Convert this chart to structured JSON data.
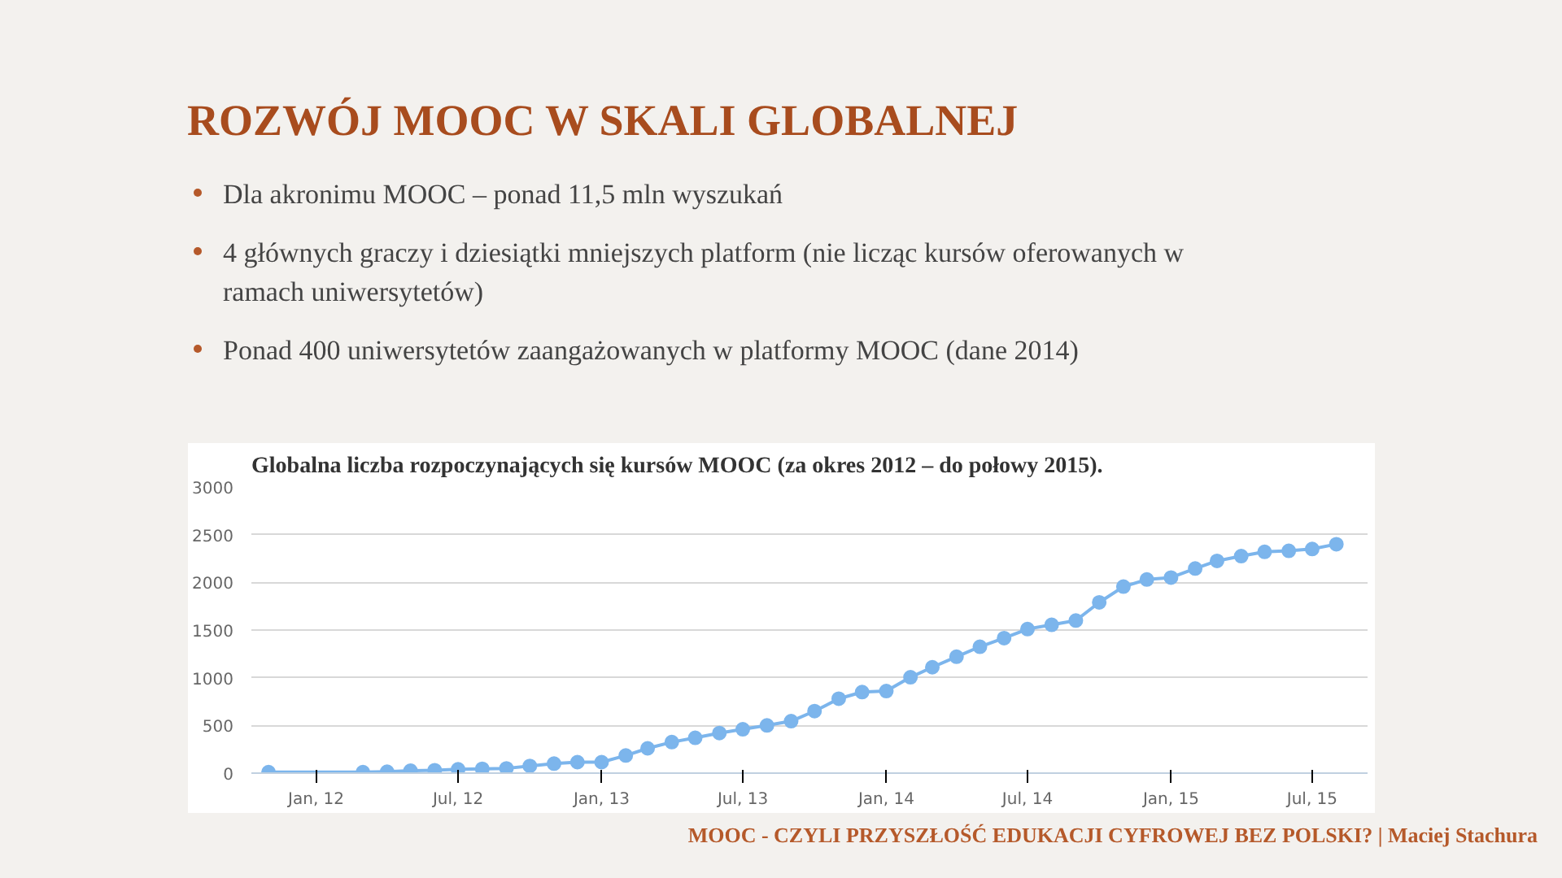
{
  "chart_data": {
    "type": "line",
    "title": "Globalna liczba rozpoczynających się kursów MOOC (za okres 2012 – do połowy 2015).",
    "annotations": [
      "ROZWÓJ MOOC W SKALI GLOBALNEJ",
      "Dla akronimu MOOC – ponad 11,5 mln wyszukań",
      "4 głównych graczy i dziesiątki mniejszych platform (nie licząc kursów oferowanych w ramach uniwersytetów)",
      "Ponad 400 uniwersytetów zaangażowanych w platformy MOOC (dane 2014)",
      "MOOC - CZYLI PRZYSZŁOŚĆ EDUKACJI CYFROWEJ BEZ POLSKI? | Maciej Stachura"
    ],
    "x": [
      "2011-11",
      "2012-03",
      "2012-04",
      "2012-05",
      "2012-06",
      "2012-07",
      "2012-08",
      "2012-09",
      "2012-10",
      "2012-11",
      "2012-12",
      "2013-01",
      "2013-02",
      "2013-03",
      "2013-04",
      "2013-05",
      "2013-06",
      "2013-07",
      "2013-08",
      "2013-09",
      "2013-10",
      "2013-11",
      "2013-12",
      "2014-01",
      "2014-02",
      "2014-03",
      "2014-04",
      "2014-05",
      "2014-06",
      "2014-07",
      "2014-08",
      "2014-09",
      "2014-10",
      "2014-11",
      "2014-12",
      "2015-01",
      "2015-02",
      "2015-03",
      "2015-04",
      "2015-05",
      "2015-06",
      "2015-07",
      "2015-08"
    ],
    "series": [
      {
        "color": "#7cb5ec",
        "values": [
          10,
          10,
          15,
          25,
          30,
          40,
          45,
          50,
          75,
          100,
          115,
          115,
          185,
          260,
          325,
          370,
          420,
          460,
          500,
          545,
          650,
          780,
          850,
          860,
          1005,
          1110,
          1220,
          1325,
          1415,
          1510,
          1555,
          1600,
          1790,
          1955,
          2030,
          2050,
          2145,
          2225,
          2275,
          2320,
          2330,
          2350,
          2400
        ]
      }
    ],
    "xlim": [
      "2011-10-10",
      "2015-09-10"
    ],
    "xticks": [
      {
        "value": "2012-01",
        "label": "Jan, 12"
      },
      {
        "value": "2012-07",
        "label": "Jul, 12"
      },
      {
        "value": "2013-01",
        "label": "Jan, 13"
      },
      {
        "value": "2013-07",
        "label": "Jul, 13"
      },
      {
        "value": "2014-01",
        "label": "Jan, 14"
      },
      {
        "value": "2014-07",
        "label": "Jul, 14"
      },
      {
        "value": "2015-01",
        "label": "Jan, 15"
      },
      {
        "value": "2015-07",
        "label": "Jul, 15"
      }
    ],
    "ylim": [
      0,
      3000
    ],
    "yticks": [
      0,
      500,
      1000,
      1500,
      2000,
      2500,
      3000
    ],
    "grid": "y",
    "marker": "circle",
    "line_style": "solid"
  }
}
